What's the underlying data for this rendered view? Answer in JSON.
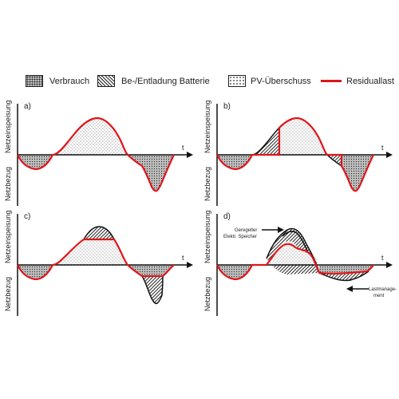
{
  "legend": {
    "items": [
      {
        "label": "Verbrauch",
        "pattern": "dense-dots"
      },
      {
        "label": "Be-/Entladung Batterie",
        "pattern": "hatch"
      },
      {
        "label": "PV-Überschuss",
        "pattern": "sparse-dots"
      },
      {
        "label": "Residuallast",
        "pattern": "red-line"
      }
    ]
  },
  "axes": {
    "top_label": "Netzeinspeisung",
    "bottom_label": "Netzbezug",
    "t_label": "t"
  },
  "panels": [
    {
      "id": "a",
      "label": "a)"
    },
    {
      "id": "b",
      "label": "b)"
    },
    {
      "id": "c",
      "label": "c)"
    },
    {
      "id": "d",
      "label": "d)",
      "annotations": {
        "storage": [
          "Geregelter",
          "Elektr. Speicher"
        ],
        "load": [
          "Lastmanage-",
          "ment"
        ]
      }
    }
  ],
  "colors": {
    "residual": "#e0151b",
    "outline": "#111111",
    "axis": "#111111"
  }
}
